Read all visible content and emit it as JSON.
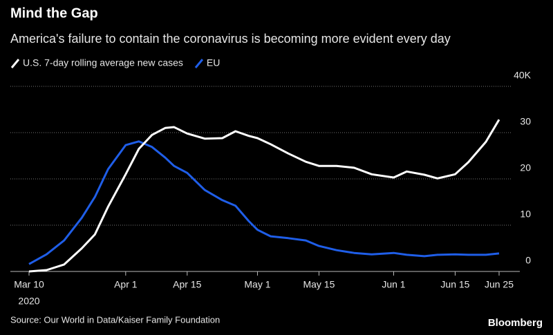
{
  "chart_data": {
    "type": "line",
    "title": "Mind the Gap",
    "subtitle": "America's failure to contain the coronavirus is becoming more evident every day",
    "source": "Source: Our World in Data/Kaiser Family Foundation",
    "brand": "Bloomberg",
    "x": [
      "2020-03-10",
      "2020-03-14",
      "2020-03-18",
      "2020-03-22",
      "2020-03-25",
      "2020-03-28",
      "2020-04-01",
      "2020-04-04",
      "2020-04-07",
      "2020-04-10",
      "2020-04-12",
      "2020-04-15",
      "2020-04-19",
      "2020-04-23",
      "2020-04-26",
      "2020-04-29",
      "2020-05-01",
      "2020-05-04",
      "2020-05-08",
      "2020-05-12",
      "2020-05-15",
      "2020-05-19",
      "2020-05-23",
      "2020-05-27",
      "2020-06-01",
      "2020-06-04",
      "2020-06-08",
      "2020-06-11",
      "2020-06-15",
      "2020-06-18",
      "2020-06-22",
      "2020-06-25"
    ],
    "series": [
      {
        "name": "U.S. 7-day rolling average new cases",
        "color": "#ffffff",
        "values": [
          0.0,
          0.3,
          1.5,
          5,
          8,
          14,
          21,
          26.5,
          29.5,
          31,
          31.2,
          29.8,
          28.7,
          28.8,
          30.3,
          29.3,
          28.8,
          27.5,
          25.5,
          23.7,
          22.8,
          22.8,
          22.4,
          21,
          20.3,
          21.6,
          20.9,
          20.1,
          21,
          23.6,
          28,
          32.8
        ]
      },
      {
        "name": "EU",
        "color": "#1f5ee8",
        "values": [
          1.6,
          3.7,
          6.7,
          11.6,
          16.1,
          22.1,
          27.3,
          28.1,
          26.9,
          24.6,
          22.8,
          21.3,
          17.6,
          15.4,
          14.2,
          10.9,
          9,
          7.6,
          7.2,
          6.7,
          5.5,
          4.6,
          4,
          3.7,
          4,
          3.6,
          3.3,
          3.6,
          3.7,
          3.6,
          3.6,
          3.9
        ]
      }
    ],
    "xlim": [
      "2020-03-10",
      "2020-06-25"
    ],
    "xticks": [
      {
        "value": "2020-03-10",
        "label": "Mar 10"
      },
      {
        "value": "2020-04-01",
        "label": "Apr 1"
      },
      {
        "value": "2020-04-15",
        "label": "Apr 15"
      },
      {
        "value": "2020-05-01",
        "label": "May 1"
      },
      {
        "value": "2020-05-15",
        "label": "May 15"
      },
      {
        "value": "2020-06-01",
        "label": "Jun 1"
      },
      {
        "value": "2020-06-15",
        "label": "Jun 15"
      },
      {
        "value": "2020-06-25",
        "label": "Jun 25"
      }
    ],
    "xtick_year": "2020",
    "ylim": [
      0,
      40
    ],
    "yticks": [
      0,
      10,
      20,
      30,
      {
        "value": 40,
        "label": "40K"
      }
    ],
    "grid": true
  }
}
